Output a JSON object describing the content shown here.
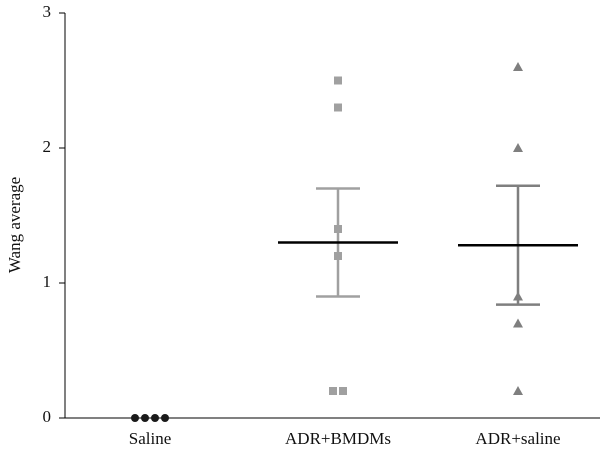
{
  "chart_data": {
    "type": "dot",
    "y_label": "Wang average",
    "categories": [
      "Saline",
      "ADR+BMDMs",
      "ADR+saline"
    ],
    "points": [
      [
        0,
        0,
        0,
        0
      ],
      [
        2.5,
        2.3,
        1.4,
        1.2,
        0.2,
        0.2
      ],
      [
        2.6,
        2.0,
        0.9,
        0.7,
        0.2
      ]
    ],
    "means": [
      null,
      1.3,
      1.28
    ],
    "sems": [
      null,
      0.4,
      0.44
    ],
    "colors": [
      "#1a1a1a",
      "#a0a0a0",
      "#7f7f7f"
    ],
    "markers": [
      "circle",
      "square",
      "triangle"
    ],
    "mean_color": "#000000",
    "ylim": [
      0,
      3
    ],
    "yticks": [
      0,
      1,
      2,
      3
    ]
  }
}
